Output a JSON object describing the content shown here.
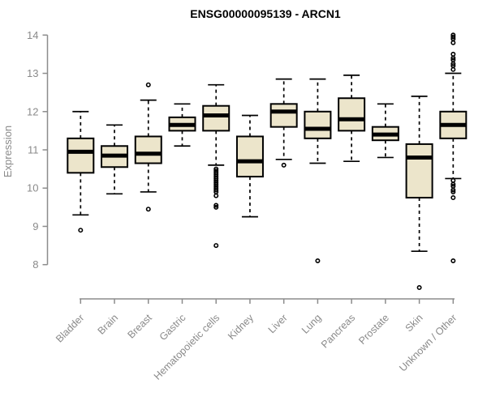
{
  "title": "ENSG00000095139 - ARCN1",
  "chart_data": {
    "type": "boxplot",
    "title": "ENSG00000095139 - ARCN1",
    "xlabel": "",
    "ylabel": "Expression",
    "ylim": [
      8,
      14
    ],
    "yticks": [
      8,
      9,
      10,
      11,
      12,
      13,
      14
    ],
    "grid": false,
    "legend": false,
    "categories": [
      "Bladder",
      "Brain",
      "Breast",
      "Gastric",
      "Hematopoietic cells",
      "Kidney",
      "Liver",
      "Lung",
      "Pancreas",
      "Prostate",
      "Skin",
      "Unknown / Other"
    ],
    "series": [
      {
        "category": "Bladder",
        "whisker_low": 9.3,
        "q1": 10.4,
        "median": 10.95,
        "q3": 11.3,
        "whisker_high": 12.0,
        "outliers": [
          8.9
        ]
      },
      {
        "category": "Brain",
        "whisker_low": 9.85,
        "q1": 10.55,
        "median": 10.85,
        "q3": 11.1,
        "whisker_high": 11.65,
        "outliers": []
      },
      {
        "category": "Breast",
        "whisker_low": 9.9,
        "q1": 10.65,
        "median": 10.9,
        "q3": 11.35,
        "whisker_high": 12.3,
        "outliers": [
          12.7,
          9.45
        ]
      },
      {
        "category": "Gastric",
        "whisker_low": 11.1,
        "q1": 11.5,
        "median": 11.65,
        "q3": 11.85,
        "whisker_high": 12.2,
        "outliers": []
      },
      {
        "category": "Hematopoietic cells",
        "whisker_low": 10.6,
        "q1": 11.5,
        "median": 11.9,
        "q3": 12.15,
        "whisker_high": 12.7,
        "outliers": [
          10.5,
          10.45,
          10.4,
          10.35,
          10.3,
          10.25,
          10.2,
          10.15,
          10.1,
          10.05,
          10.0,
          9.95,
          9.9,
          9.8,
          9.55,
          9.5,
          8.5
        ]
      },
      {
        "category": "Kidney",
        "whisker_low": 9.25,
        "q1": 10.3,
        "median": 10.7,
        "q3": 11.35,
        "whisker_high": 11.9,
        "outliers": []
      },
      {
        "category": "Liver",
        "whisker_low": 10.75,
        "q1": 11.6,
        "median": 12.0,
        "q3": 12.2,
        "whisker_high": 12.85,
        "outliers": [
          10.6
        ]
      },
      {
        "category": "Lung",
        "whisker_low": 10.65,
        "q1": 11.3,
        "median": 11.55,
        "q3": 12.0,
        "whisker_high": 12.85,
        "outliers": [
          8.1
        ]
      },
      {
        "category": "Pancreas",
        "whisker_low": 10.7,
        "q1": 11.5,
        "median": 11.8,
        "q3": 12.35,
        "whisker_high": 12.95,
        "outliers": []
      },
      {
        "category": "Prostate",
        "whisker_low": 10.8,
        "q1": 11.25,
        "median": 11.4,
        "q3": 11.6,
        "whisker_high": 12.2,
        "outliers": []
      },
      {
        "category": "Skin",
        "whisker_low": 8.35,
        "q1": 9.75,
        "median": 10.8,
        "q3": 11.15,
        "whisker_high": 12.4,
        "outliers": [
          7.4
        ]
      },
      {
        "category": "Unknown / Other",
        "whisker_low": 10.25,
        "q1": 11.3,
        "median": 11.65,
        "q3": 12.0,
        "whisker_high": 13.0,
        "outliers": [
          14.0,
          13.95,
          13.9,
          13.8,
          13.5,
          13.4,
          13.35,
          13.25,
          13.2,
          13.1,
          10.2,
          10.1,
          10.05,
          9.95,
          9.9,
          9.75,
          8.1
        ]
      }
    ],
    "style": {
      "box_fill": "#ECE5CB",
      "box_stroke": "#000000",
      "median_color": "#000000",
      "whisker_color": "#000000",
      "outlier_color": "#000000",
      "axis_color": "#8c8c8c",
      "tick_label_color": "#8a8a8a",
      "title_color": "#000000",
      "background": "#ffffff"
    }
  }
}
